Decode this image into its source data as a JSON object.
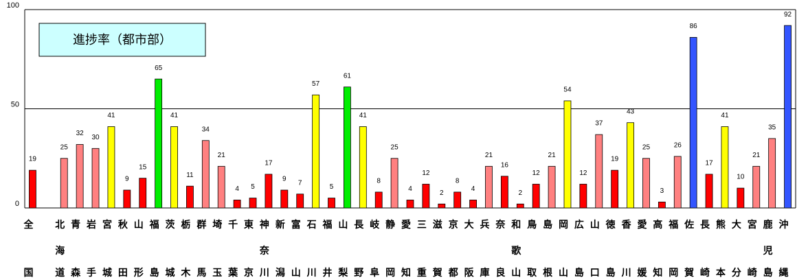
{
  "chart_data": {
    "type": "bar",
    "title": "進捗率（都市部）",
    "categories": [
      "全国",
      null,
      "北海道",
      "青森",
      "岩手",
      "宮城",
      "秋田",
      "山形",
      "福島",
      "茨城",
      "栃木",
      "群馬",
      "埼玉",
      "千葉",
      "東京",
      "神奈川",
      "新潟",
      "富山",
      "石川",
      "福井",
      "山梨",
      "長野",
      "岐阜",
      "静岡",
      "愛知",
      "三重",
      "滋賀",
      "京都",
      "大阪",
      "兵庫",
      "奈良",
      "和歌山",
      "鳥取",
      "島根",
      "岡山",
      "広島",
      "山口",
      "徳島",
      "香川",
      "愛媛",
      "高知",
      "福岡",
      "佐賀",
      "長崎",
      "熊本",
      "大分",
      "宮崎",
      "鹿児島",
      "沖縄"
    ],
    "values": [
      19,
      null,
      25,
      32,
      30,
      41,
      9,
      15,
      65,
      41,
      11,
      34,
      21,
      4,
      5,
      17,
      9,
      7,
      57,
      5,
      61,
      41,
      8,
      25,
      4,
      12,
      2,
      8,
      4,
      21,
      16,
      2,
      12,
      21,
      54,
      12,
      37,
      19,
      43,
      25,
      3,
      26,
      86,
      17,
      41,
      10,
      21,
      35,
      92
    ],
    "colors": [
      "#ff0000",
      null,
      "#ff8080",
      "#ff8080",
      "#ff8080",
      "#ffff00",
      "#ff0000",
      "#ff0000",
      "#00ee00",
      "#ffff00",
      "#ff0000",
      "#ff8080",
      "#ff8080",
      "#ff0000",
      "#ff0000",
      "#ff0000",
      "#ff0000",
      "#ff0000",
      "#ffff00",
      "#ff0000",
      "#00ee00",
      "#ffff00",
      "#ff0000",
      "#ff8080",
      "#ff0000",
      "#ff0000",
      "#ff0000",
      "#ff0000",
      "#ff0000",
      "#ff8080",
      "#ff0000",
      "#ff0000",
      "#ff0000",
      "#ff8080",
      "#ffff00",
      "#ff0000",
      "#ff8080",
      "#ff0000",
      "#ffff00",
      "#ff8080",
      "#ff0000",
      "#ff8080",
      "#3355ff",
      "#ff0000",
      "#ffff00",
      "#ff0000",
      "#ff8080",
      "#ff8080",
      "#3355ff"
    ],
    "ylim": [
      0,
      100
    ],
    "yticks": [
      0,
      50,
      100
    ],
    "grid": true
  }
}
